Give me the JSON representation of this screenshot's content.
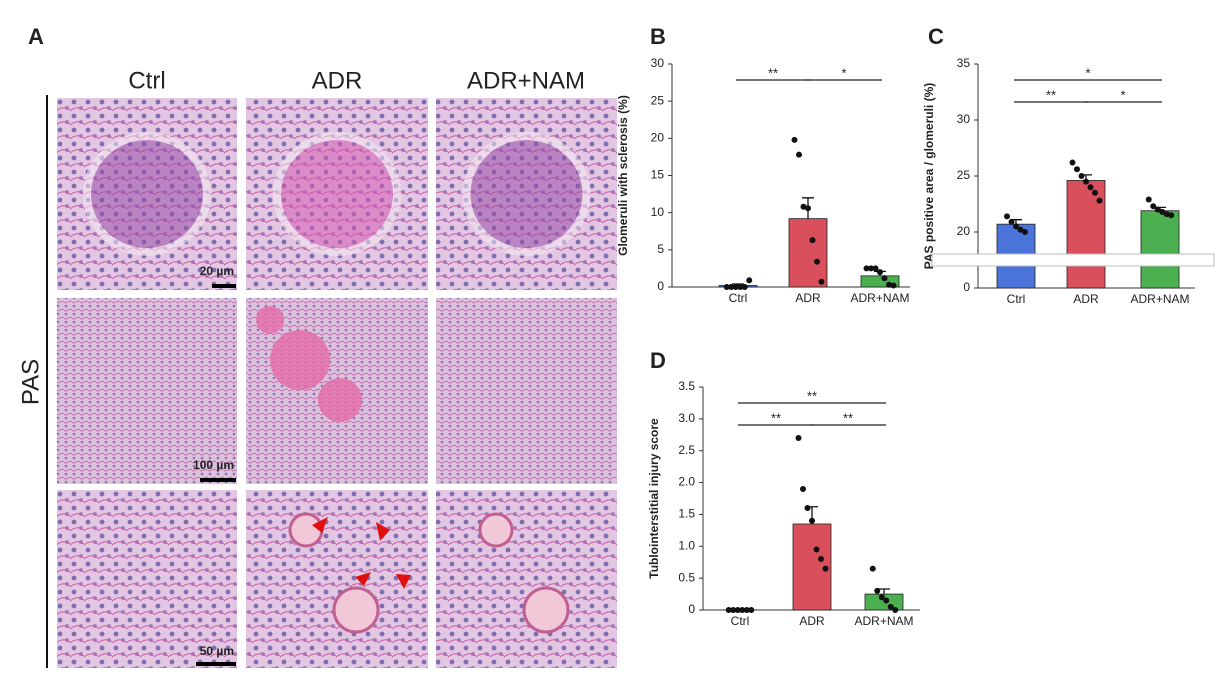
{
  "panel_labels": [
    "A",
    "B",
    "C",
    "D"
  ],
  "panel_a": {
    "columns": [
      "Ctrl",
      "ADR",
      "ADR+NAM"
    ],
    "row_label": "PAS",
    "scale_bars": [
      "20 µm",
      "100 µm",
      "50 µm"
    ]
  },
  "chart_data": [
    {
      "type": "bar",
      "ylabel": "Glomeruli with sclerosis (%)",
      "categories": [
        "Ctrl",
        "ADR",
        "ADR+NAM"
      ],
      "values": [
        0.2,
        9.2,
        1.5
      ],
      "errors": [
        0.2,
        2.8,
        0.6
      ],
      "points": [
        [
          0,
          0,
          0,
          0,
          0,
          0.9
        ],
        [
          19.8,
          17.8,
          10.8,
          10.6,
          6.3,
          3.4,
          0.7
        ],
        [
          2.5,
          2.5,
          2.5,
          2.0,
          1.2,
          0.3,
          0.2
        ]
      ],
      "colors": [
        "#4a74d9",
        "#d94f5c",
        "#4caf50"
      ],
      "ylim": [
        0,
        30
      ],
      "yticks": [
        0,
        5,
        10,
        15,
        20,
        25,
        30
      ],
      "annotations": [
        {
          "text": "**",
          "between": [
            "Ctrl",
            "ADR"
          ]
        },
        {
          "text": "*",
          "between": [
            "ADR",
            "ADR+NAM"
          ]
        }
      ]
    },
    {
      "type": "bar",
      "ylabel": "PAS positive area / glomeruli (%)",
      "categories": [
        "Ctrl",
        "ADR",
        "ADR+NAM"
      ],
      "values": [
        20.7,
        24.6,
        21.9
      ],
      "errors": [
        0.4,
        0.5,
        0.3
      ],
      "points": [
        [
          21.4,
          20.9,
          20.5,
          20.2,
          20.0
        ],
        [
          26.2,
          25.6,
          25.0,
          24.5,
          24.0,
          23.5,
          22.8
        ],
        [
          22.9,
          22.3,
          22.0,
          21.8,
          21.6,
          21.5
        ]
      ],
      "colors": [
        "#4a74d9",
        "#d94f5c",
        "#4caf50"
      ],
      "ylim": [
        0,
        35
      ],
      "yticks": [
        0,
        20,
        25,
        30,
        35
      ],
      "axis_break": [
        0,
        20
      ],
      "annotations": [
        {
          "text": "*",
          "between": [
            "Ctrl",
            "ADR+NAM"
          ]
        },
        {
          "text": "**",
          "between": [
            "Ctrl",
            "ADR"
          ]
        },
        {
          "text": "*",
          "between": [
            "ADR",
            "ADR+NAM"
          ]
        }
      ]
    },
    {
      "type": "bar",
      "ylabel": "Tublointerstitial injury score",
      "categories": [
        "Ctrl",
        "ADR",
        "ADR+NAM"
      ],
      "values": [
        0,
        1.35,
        0.25
      ],
      "errors": [
        0,
        0.27,
        0.08
      ],
      "points": [
        [
          0,
          0,
          0,
          0,
          0,
          0
        ],
        [
          2.7,
          1.9,
          1.6,
          1.4,
          0.95,
          0.8,
          0.65
        ],
        [
          0.65,
          0.3,
          0.2,
          0.15,
          0.05,
          0
        ]
      ],
      "colors": [
        "#4a74d9",
        "#d94f5c",
        "#4caf50"
      ],
      "ylim": [
        0,
        3.5
      ],
      "yticks": [
        0,
        0.5,
        {
          "value": 1,
          "label": "1.0"
        },
        1.5,
        {
          "value": 2,
          "label": "2.0"
        },
        2.5,
        {
          "value": 3,
          "label": "3.0"
        },
        3.5
      ],
      "annotations": [
        {
          "text": "**",
          "between": [
            "Ctrl",
            "ADR+NAM"
          ]
        },
        {
          "text": "**",
          "between": [
            "Ctrl",
            "ADR"
          ]
        },
        {
          "text": "**",
          "between": [
            "ADR",
            "ADR+NAM"
          ]
        }
      ]
    }
  ]
}
